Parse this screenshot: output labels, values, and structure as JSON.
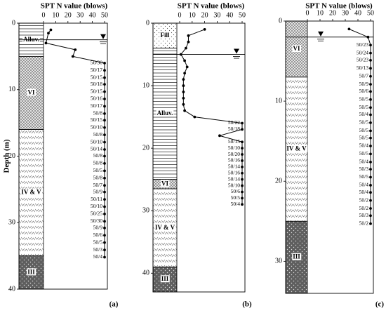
{
  "chart_data": [
    {
      "type": "line",
      "title": "SPT N value (blows)",
      "ylabel": "Depth (m)",
      "panel_label": "(a)",
      "xlim": [
        0,
        50
      ],
      "xticks": [
        0,
        10,
        20,
        30,
        40,
        50
      ],
      "ylim": [
        0,
        40
      ],
      "yticks": [
        0,
        10,
        20,
        30,
        40
      ],
      "y_inverted": true,
      "water_table": 2.5,
      "layers": [
        {
          "label": "Alluv.",
          "top": 0,
          "bottom": 5,
          "pattern": "lines"
        },
        {
          "label": "VI",
          "top": 5,
          "bottom": 16,
          "pattern": "cross"
        },
        {
          "label": "IV & V",
          "top": 16,
          "bottom": 35,
          "pattern": "zigzag"
        },
        {
          "label": "III",
          "top": 35,
          "bottom": 40,
          "pattern": "dark"
        }
      ],
      "series": [
        {
          "color": "#000000",
          "x": [
            6,
            4,
            2,
            26,
            24,
            50,
            50,
            50,
            50,
            50,
            50,
            50,
            50,
            50,
            50,
            50,
            50,
            50,
            50,
            50,
            50,
            50,
            50,
            50,
            50,
            50,
            50,
            50,
            50,
            50,
            50,
            50,
            50
          ],
          "values": [
            1,
            1.5,
            3,
            4,
            5,
            6.0,
            7.1,
            8.2,
            9.2,
            10.3,
            11.4,
            12.5,
            13.6,
            14.6,
            15.7,
            16.8,
            17.9,
            19.0,
            20.0,
            21.1,
            22.2,
            23.3,
            24.4,
            25.4,
            26.5,
            27.6,
            28.7,
            29.8,
            30.8,
            31.9,
            33.0,
            34.1,
            35.2
          ],
          "value_labels": [
            null,
            null,
            null,
            null,
            null,
            "50/30",
            "50/17",
            "50/15",
            "50/18",
            "50/15",
            "50/16",
            "50/17",
            "50/8",
            "50/15",
            "50/10",
            "50/8",
            "50/10",
            "50/14",
            "50/8",
            "50/8",
            "50/5",
            "50/8",
            "50/7",
            "50/9",
            "50/11",
            "50/10",
            "50/25",
            "50/30",
            "50/9",
            "50/6",
            "50/5",
            "50/3",
            "50/4"
          ]
        }
      ]
    },
    {
      "type": "line",
      "title": "SPT N value (blows)",
      "panel_label": "(b)",
      "xlim": [
        0,
        50
      ],
      "xticks": [
        0,
        10,
        20,
        30,
        40,
        50
      ],
      "ylim": [
        0,
        43
      ],
      "yticks": [
        0,
        10,
        20,
        30,
        40
      ],
      "y_inverted": true,
      "water_table": 5,
      "layers": [
        {
          "label": "Fill",
          "top": 0,
          "bottom": 4,
          "pattern": "dots"
        },
        {
          "label": "Alluv.",
          "top": 4,
          "bottom": 25,
          "pattern": "lines"
        },
        {
          "label": "VI",
          "top": 25,
          "bottom": 26.5,
          "pattern": "cross"
        },
        {
          "label": "IV & V",
          "top": 26.5,
          "bottom": 39,
          "pattern": "zigzag"
        },
        {
          "label": "III",
          "top": 39,
          "bottom": 43,
          "pattern": "dark"
        }
      ],
      "series": [
        {
          "color": "#000000",
          "x": [
            20,
            7,
            7,
            5,
            1,
            4,
            6,
            4,
            3,
            3,
            3,
            3,
            3,
            4,
            12,
            50,
            50,
            32,
            50,
            50,
            50,
            50,
            50,
            50,
            50,
            50,
            50,
            50,
            50
          ],
          "values": [
            1,
            2,
            3,
            4,
            5,
            6,
            7,
            8,
            9,
            10,
            11,
            12,
            13,
            14,
            15,
            16,
            17,
            18,
            19,
            20,
            21,
            22,
            23,
            24,
            25,
            26,
            27,
            28,
            29
          ],
          "value_labels": [
            null,
            null,
            null,
            null,
            null,
            null,
            null,
            null,
            null,
            null,
            null,
            null,
            null,
            null,
            null,
            "50/22",
            "50/18",
            null,
            "50/15",
            "50/10",
            "50/20",
            "50/16",
            "50/14",
            "50/16",
            "50/14",
            "50/10",
            "50/6",
            "50/5",
            "50/4"
          ]
        }
      ]
    },
    {
      "type": "line",
      "title": "SPT N value (blows)",
      "panel_label": "(c)",
      "xlim": [
        0,
        50
      ],
      "xticks": [
        0,
        10,
        20,
        30,
        40,
        50
      ],
      "ylim": [
        0,
        34
      ],
      "yticks": [
        0,
        10,
        20,
        30
      ],
      "y_inverted": true,
      "water_table": 2,
      "layers": [
        {
          "label": "VI",
          "top": 0,
          "bottom": 7,
          "pattern": "cross"
        },
        {
          "label": "IV & V",
          "top": 7,
          "bottom": 25,
          "pattern": "zigzag"
        },
        {
          "label": "III",
          "top": 25,
          "bottom": 34,
          "pattern": "dark"
        }
      ],
      "series": [
        {
          "color": "#000000",
          "x": [
            33,
            48,
            50,
            50,
            50,
            50,
            50,
            50,
            50,
            50,
            50,
            50,
            50,
            50,
            50,
            50,
            50,
            50,
            50,
            50,
            50,
            50,
            50,
            50,
            50,
            50
          ],
          "values": [
            1,
            2,
            3,
            4.0,
            4.9,
            5.9,
            6.9,
            7.9,
            8.8,
            9.8,
            10.8,
            11.7,
            12.7,
            13.7,
            14.6,
            15.6,
            16.6,
            17.6,
            18.5,
            19.5,
            20.5,
            21.4,
            22.4,
            23.4,
            24.3,
            25.3
          ],
          "value_labels": [
            null,
            null,
            "50/23",
            "50/24",
            "50/23",
            "50/13",
            "50/7",
            "50/9",
            "50/6",
            "50/5",
            "50/5",
            "50/4",
            "50/5",
            "50/5",
            "50/5",
            "50/4",
            "50/5",
            "50/4",
            "50/3",
            "50/5",
            "50/4",
            "50/4",
            "50/2",
            "50/2",
            "50/3",
            "50/2"
          ]
        }
      ]
    }
  ]
}
